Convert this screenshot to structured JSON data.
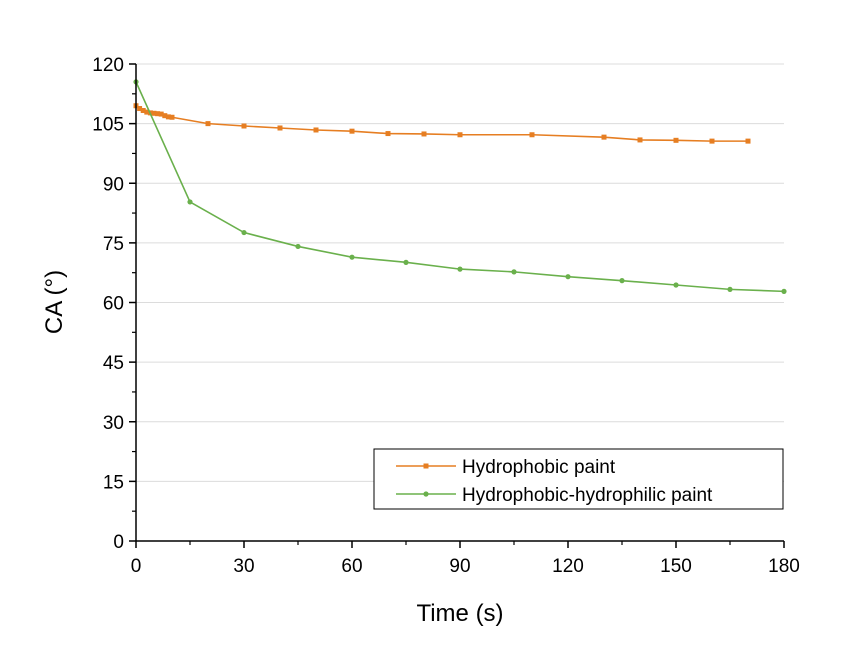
{
  "chart_data": {
    "type": "line",
    "title": "",
    "xlabel": "Time (s)",
    "ylabel": "CA (°)",
    "xlim": [
      0,
      180
    ],
    "ylim": [
      0,
      120
    ],
    "xticks": [
      0,
      30,
      60,
      90,
      120,
      150,
      180
    ],
    "yticks": [
      0,
      15,
      30,
      45,
      60,
      75,
      90,
      105,
      120
    ],
    "grid": "horizontal",
    "legend_position": "bottom-right",
    "series": [
      {
        "name": "Hydrophobic paint",
        "color": "#e67e22",
        "marker": "square",
        "x": [
          0,
          1,
          2,
          3,
          4,
          5,
          6,
          7,
          8,
          9,
          10,
          20,
          30,
          40,
          50,
          60,
          70,
          80,
          90,
          110,
          130,
          140,
          150,
          160,
          170
        ],
        "y": [
          109.5,
          108.8,
          108.3,
          107.9,
          107.7,
          107.6,
          107.5,
          107.4,
          107.0,
          106.7,
          106.6,
          105.0,
          104.4,
          103.9,
          103.4,
          103.1,
          102.5,
          102.4,
          102.2,
          102.2,
          101.6,
          100.9,
          100.8,
          100.6,
          100.6
        ]
      },
      {
        "name": "Hydrophobic-hydrophilic paint",
        "color": "#6ab04c",
        "marker": "circle",
        "x": [
          0,
          15,
          30,
          45,
          60,
          75,
          90,
          105,
          120,
          135,
          150,
          165,
          180
        ],
        "y": [
          115.5,
          85.3,
          77.6,
          74.1,
          71.4,
          70.1,
          68.4,
          67.7,
          66.5,
          65.5,
          64.4,
          63.3,
          62.8
        ]
      }
    ]
  }
}
